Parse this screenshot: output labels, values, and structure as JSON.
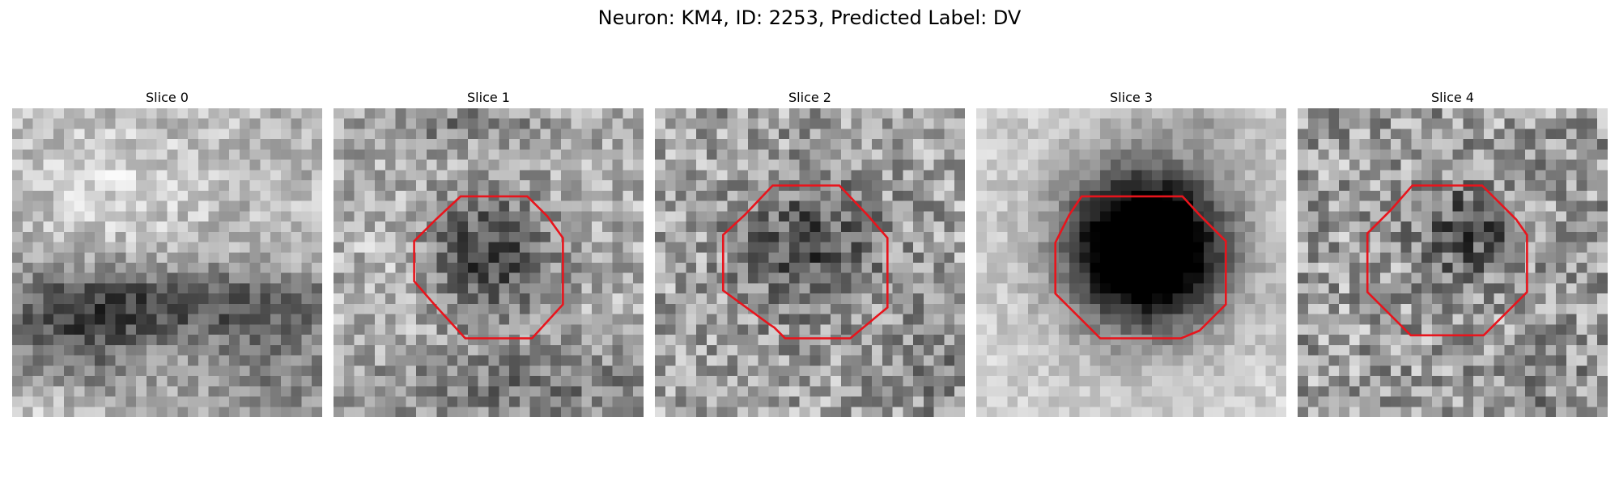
{
  "figure": {
    "title": "Neuron: KM4, ID: 2253, Predicted Label: DV"
  },
  "panels": [
    {
      "title": "Slice 0",
      "description_icon": "grayscale-microscopy-slice",
      "contour": false
    },
    {
      "title": "Slice 1",
      "description_icon": "grayscale-microscopy-slice",
      "contour": true
    },
    {
      "title": "Slice 2",
      "description_icon": "grayscale-microscopy-slice",
      "contour": true
    },
    {
      "title": "Slice 3",
      "description_icon": "grayscale-microscopy-slice",
      "contour": true
    },
    {
      "title": "Slice 4",
      "description_icon": "grayscale-microscopy-slice",
      "contour": true
    }
  ],
  "colors": {
    "contour": "#e8141c",
    "background": "#ffffff"
  }
}
